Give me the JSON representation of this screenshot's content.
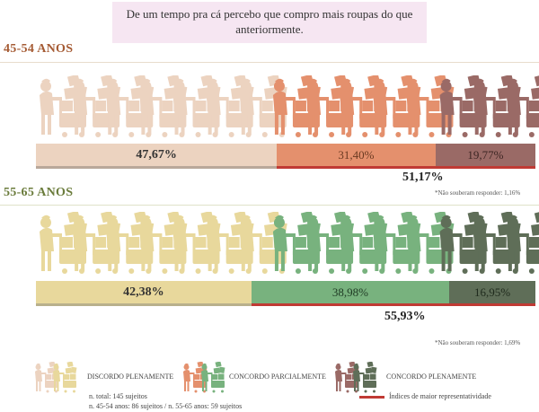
{
  "question": "De um tempo pra cá percebo que compro mais roupas do que anteriormente.",
  "colors": {
    "discordo_light": "#ecd3c0",
    "parcial_light": "#e4906d",
    "pleno_light": "#9a6a66",
    "discordo_green": "#e8d89c",
    "parcial_green": "#78b27e",
    "pleno_green": "#5f6e58",
    "highlight": "#c03a34"
  },
  "chart_data": [
    {
      "type": "bar",
      "group": "45-54 ANOS",
      "series": [
        {
          "name": "DISCORDO PLENAMENTE",
          "value": 47.67,
          "label": "47,67%"
        },
        {
          "name": "CONCORDO PARCIALMENTE",
          "value": 31.4,
          "label": "31,40%"
        },
        {
          "name": "CONCORDO PLENAMENTE",
          "value": 19.77,
          "label": "19,77%"
        }
      ],
      "agree_total": {
        "value": 51.17,
        "label": "51,17%"
      },
      "note": "*Não souberam responder: 1,16%",
      "figures": {
        "total": 15,
        "discordo": 7,
        "parcial": 5,
        "pleno": 3
      }
    },
    {
      "type": "bar",
      "group": "55-65 ANOS",
      "series": [
        {
          "name": "DISCORDO PLENAMENTE",
          "value": 42.38,
          "label": "42,38%"
        },
        {
          "name": "CONCORDO PARCIALMENTE",
          "value": 38.98,
          "label": "38,98%"
        },
        {
          "name": "CONCORDO PLENAMENTE",
          "value": 16.95,
          "label": "16,95%"
        }
      ],
      "agree_total": {
        "value": 55.93,
        "label": "55,93%"
      },
      "note": "*Não souberam responder: 1,69%",
      "figures": {
        "total": 15,
        "discordo": 7,
        "parcial": 5,
        "pleno": 3
      }
    }
  ],
  "legend": {
    "discordo": "DISCORDO PLENAMENTE",
    "parcial": "CONCORDO PARCIALMENTE",
    "pleno": "CONCORDO PLENAMENTE",
    "highlight": "Índices de maior representatividade"
  },
  "sample": {
    "line1": "n. total: 145 sujeitos",
    "line2": "n. 45-54 anos: 86 sujeitos / n. 55-65 anos: 59 sujeitos"
  }
}
